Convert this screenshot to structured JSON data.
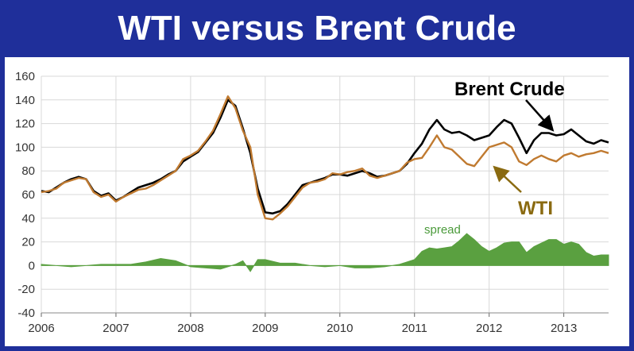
{
  "title": "WTI versus Brent Crude",
  "chart_data": {
    "type": "line",
    "x_ticks": [
      "2006",
      "2007",
      "2008",
      "2009",
      "2010",
      "2011",
      "2012",
      "2013"
    ],
    "y_ticks": [
      "160",
      "140",
      "120",
      "100",
      "80",
      "60",
      "40",
      "20",
      "0",
      "-20",
      "-40"
    ],
    "xlim": [
      2006,
      2013.6
    ],
    "ylim": [
      -40,
      160
    ],
    "grid": true,
    "colors": {
      "brent": "#000000",
      "wti": "#c07a30",
      "spread": "#5aa040",
      "wti_label": "#8a6a10",
      "arrow": "#000000",
      "wti_arrow": "#8a6a10"
    },
    "annotations": {
      "brent": "Brent Crude",
      "wti": "WTI",
      "spread": "spread"
    },
    "series": [
      {
        "name": "Brent Crude",
        "x": [
          2006.0,
          2006.1,
          2006.2,
          2006.3,
          2006.4,
          2006.5,
          2006.6,
          2006.7,
          2006.8,
          2006.9,
          2007.0,
          2007.1,
          2007.2,
          2007.3,
          2007.4,
          2007.5,
          2007.6,
          2007.7,
          2007.8,
          2007.9,
          2008.0,
          2008.1,
          2008.2,
          2008.3,
          2008.4,
          2008.5,
          2008.6,
          2008.7,
          2008.8,
          2008.9,
          2009.0,
          2009.1,
          2009.2,
          2009.3,
          2009.4,
          2009.5,
          2009.6,
          2009.7,
          2009.8,
          2009.9,
          2010.0,
          2010.1,
          2010.2,
          2010.3,
          2010.4,
          2010.5,
          2010.6,
          2010.7,
          2010.8,
          2010.9,
          2011.0,
          2011.1,
          2011.2,
          2011.3,
          2011.4,
          2011.5,
          2011.6,
          2011.7,
          2011.8,
          2011.9,
          2012.0,
          2012.1,
          2012.2,
          2012.3,
          2012.4,
          2012.5,
          2012.6,
          2012.7,
          2012.8,
          2012.9,
          2013.0,
          2013.1,
          2013.2,
          2013.3,
          2013.4,
          2013.5,
          2013.6
        ],
        "y": [
          63,
          62,
          66,
          70,
          73,
          75,
          73,
          63,
          59,
          61,
          55,
          58,
          62,
          66,
          68,
          70,
          73,
          77,
          80,
          88,
          92,
          96,
          104,
          112,
          125,
          140,
          135,
          116,
          95,
          65,
          45,
          44,
          46,
          52,
          60,
          68,
          70,
          72,
          74,
          77,
          77,
          76,
          78,
          80,
          78,
          75,
          76,
          78,
          80,
          86,
          95,
          103,
          115,
          123,
          115,
          112,
          113,
          110,
          106,
          108,
          110,
          117,
          123,
          120,
          108,
          95,
          106,
          112,
          112,
          110,
          111,
          115,
          110,
          105,
          103,
          106,
          104
        ]
      },
      {
        "name": "WTI",
        "x": [
          2006.0,
          2006.1,
          2006.2,
          2006.3,
          2006.4,
          2006.5,
          2006.6,
          2006.7,
          2006.8,
          2006.9,
          2007.0,
          2007.1,
          2007.2,
          2007.3,
          2007.4,
          2007.5,
          2007.6,
          2007.7,
          2007.8,
          2007.9,
          2008.0,
          2008.1,
          2008.2,
          2008.3,
          2008.4,
          2008.5,
          2008.6,
          2008.7,
          2008.8,
          2008.9,
          2009.0,
          2009.1,
          2009.2,
          2009.3,
          2009.4,
          2009.5,
          2009.6,
          2009.7,
          2009.8,
          2009.9,
          2010.0,
          2010.1,
          2010.2,
          2010.3,
          2010.4,
          2010.5,
          2010.6,
          2010.7,
          2010.8,
          2010.9,
          2011.0,
          2011.1,
          2011.2,
          2011.3,
          2011.4,
          2011.5,
          2011.6,
          2011.7,
          2011.8,
          2011.9,
          2012.0,
          2012.1,
          2012.2,
          2012.3,
          2012.4,
          2012.5,
          2012.6,
          2012.7,
          2012.8,
          2012.9,
          2013.0,
          2013.1,
          2013.2,
          2013.3,
          2013.4,
          2013.5,
          2013.6
        ],
        "y": [
          62,
          63,
          65,
          70,
          72,
          74,
          73,
          62,
          58,
          60,
          54,
          58,
          61,
          64,
          65,
          68,
          72,
          76,
          80,
          90,
          93,
          97,
          105,
          114,
          128,
          143,
          133,
          114,
          100,
          60,
          40,
          39,
          44,
          50,
          58,
          66,
          70,
          71,
          73,
          78,
          77,
          79,
          80,
          82,
          76,
          74,
          76,
          78,
          80,
          87,
          90,
          91,
          100,
          110,
          100,
          98,
          92,
          86,
          84,
          92,
          100,
          102,
          104,
          100,
          88,
          85,
          90,
          93,
          90,
          88,
          93,
          95,
          92,
          94,
          95,
          97,
          95
        ]
      },
      {
        "name": "spread",
        "x": [
          2006.0,
          2006.4,
          2006.8,
          2007.2,
          2007.4,
          2007.6,
          2007.8,
          2008.0,
          2008.2,
          2008.4,
          2008.6,
          2008.7,
          2008.8,
          2008.9,
          2009.0,
          2009.2,
          2009.4,
          2009.6,
          2009.8,
          2010.0,
          2010.2,
          2010.4,
          2010.6,
          2010.8,
          2011.0,
          2011.1,
          2011.2,
          2011.3,
          2011.4,
          2011.5,
          2011.6,
          2011.7,
          2011.8,
          2011.9,
          2012.0,
          2012.1,
          2012.2,
          2012.3,
          2012.4,
          2012.5,
          2012.6,
          2012.7,
          2012.8,
          2012.9,
          2013.0,
          2013.1,
          2013.2,
          2013.3,
          2013.4,
          2013.5,
          2013.6
        ],
        "y": [
          1,
          -1,
          1,
          1,
          3,
          6,
          4,
          -1,
          -2,
          -3,
          1,
          4,
          -5,
          5,
          5,
          2,
          2,
          0,
          -1,
          0,
          -2,
          -2,
          -1,
          1,
          5,
          12,
          15,
          14,
          15,
          16,
          21,
          27,
          22,
          16,
          12,
          15,
          19,
          20,
          20,
          11,
          16,
          19,
          22,
          22,
          18,
          20,
          18,
          11,
          8,
          9,
          9
        ]
      }
    ]
  }
}
